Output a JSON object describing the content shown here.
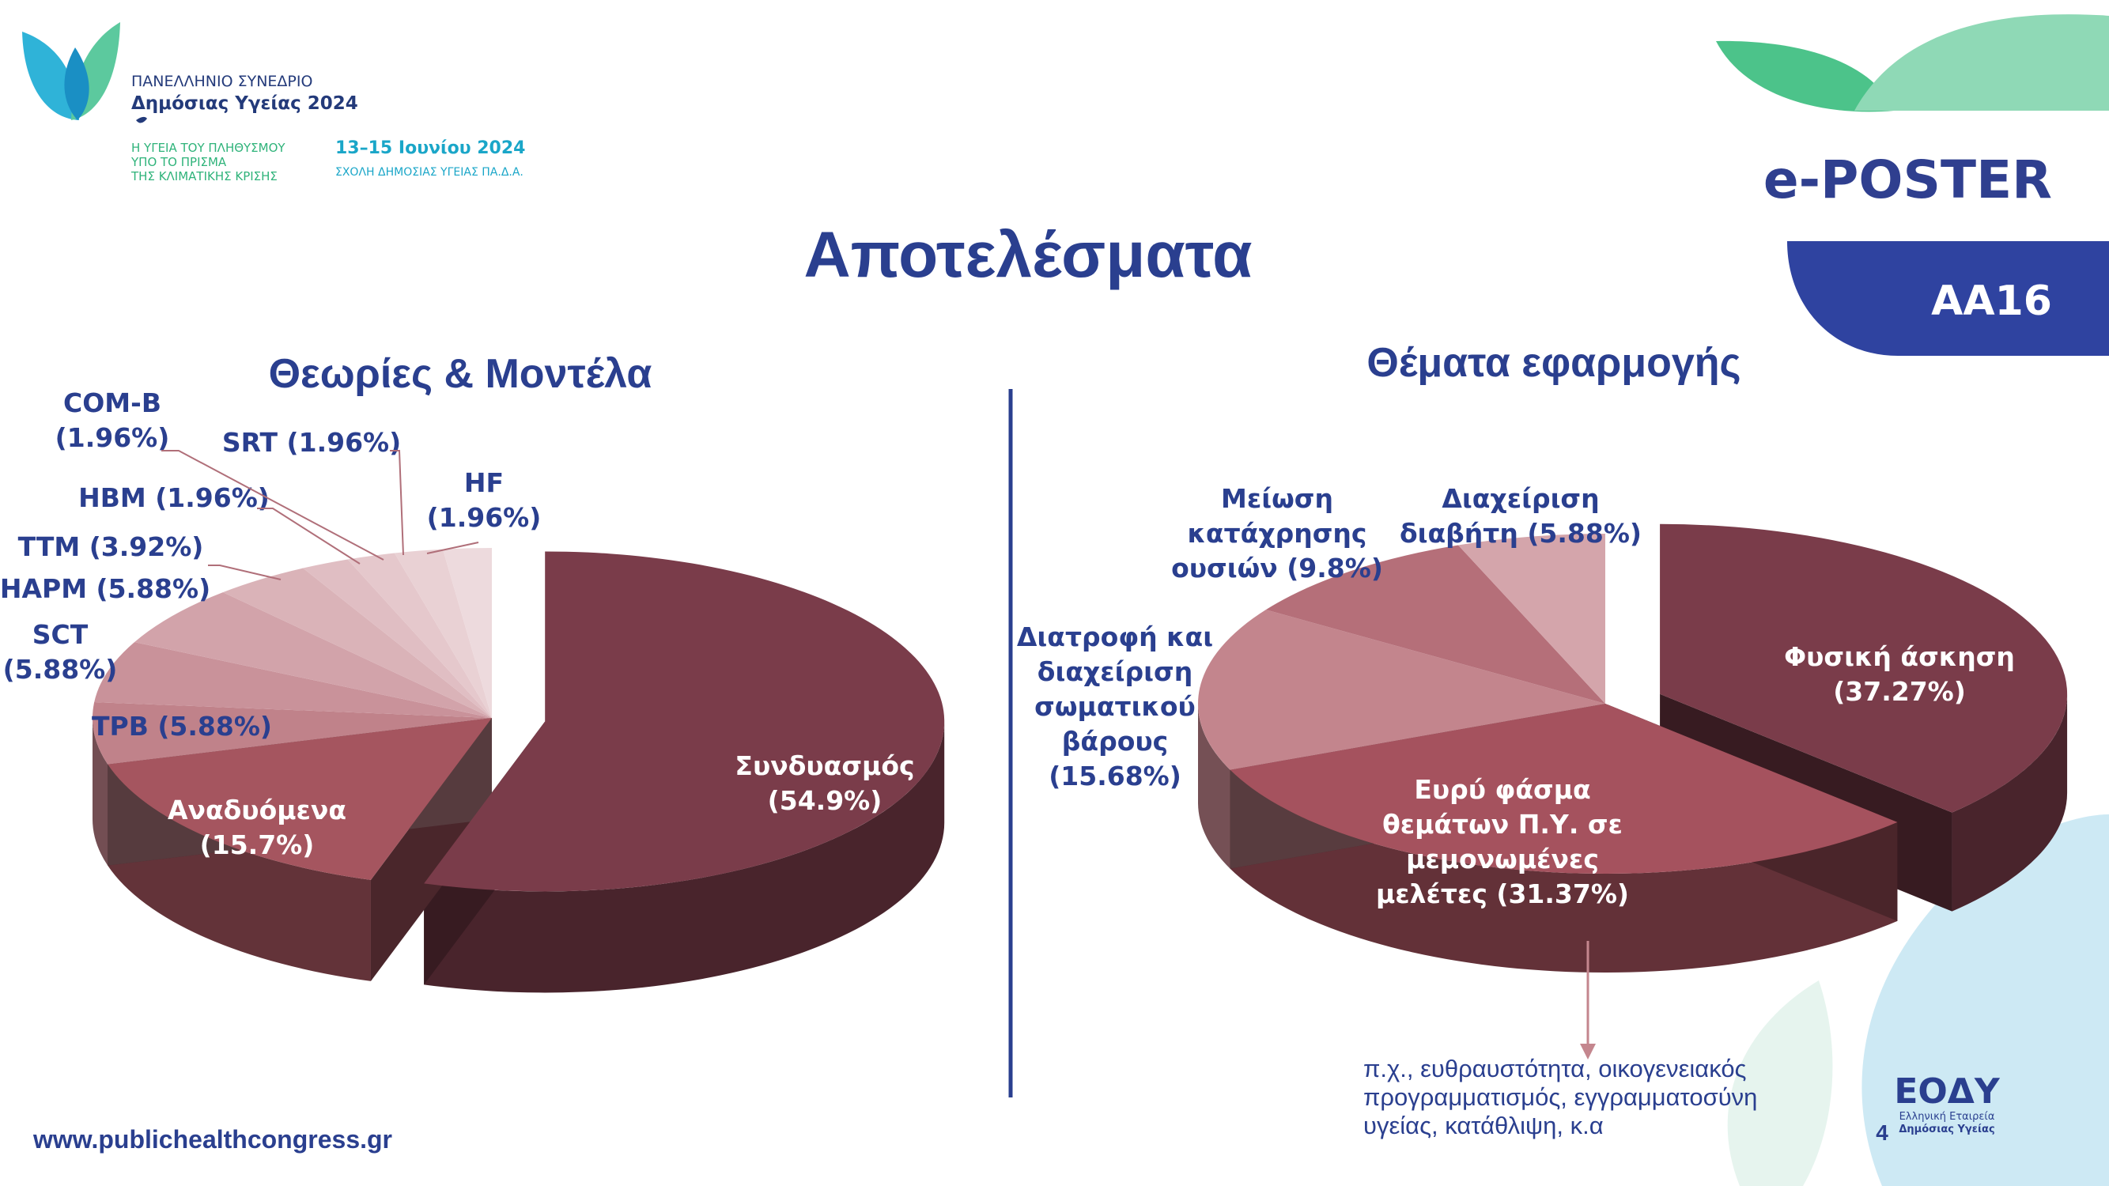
{
  "header": {
    "congress_line1": "ΠΑΝΕΛΛΗΝΙΟ ΣΥΝΕΔΡΙΟ",
    "congress_line2": "Δημόσιας Υγείας 2024",
    "theme_line1": "Η ΥΓΕΙΑ ΤΟΥ ΠΛΗΘΥΣΜΟΥ",
    "theme_line2": "ΥΠΟ ΤΟ ΠΡΙΣΜΑ",
    "theme_line3": "ΤΗΣ ΚΛΙΜΑΤΙΚΗΣ ΚΡΙΣΗΣ",
    "dates": "13–15 Ιουνίου 2024",
    "venue": "ΣΧΟΛΗ ΔΗΜΟΣΙΑΣ ΥΓΕΙΑΣ ΠΑ.Δ.Α.",
    "eposter": "e-POSTER",
    "code": "AA16"
  },
  "title": "Αποτελέσματα",
  "footer": {
    "website": "www.publichealthcongress.gr",
    "page_number": "4",
    "logo_text": "ΕΟΔΥ",
    "logo_sub1": "Ελληνική Εταιρεία",
    "logo_sub2": "Δημόσιας Υγείας"
  },
  "note": {
    "line1": "π.χ., ευθραυστότητα, οικογενειακός",
    "line2": "προγραμματισμός, εγγραμματοσύνη",
    "line3": "υγείας, κατάθλιψη, κ.α"
  },
  "colors": {
    "navy": "#2a3f8f",
    "green": "#2fb37a",
    "teal": "#1aa6c8",
    "maroon": "#7b3a49"
  },
  "chart_data": [
    {
      "type": "pie",
      "title": "Θεωρίες & Μοντέλα",
      "slices": [
        {
          "name": "Συνδυασμός",
          "value": 54.9,
          "label": [
            "Συνδυασμός",
            "(54.9%)"
          ],
          "color": "#7a3c4a"
        },
        {
          "name": "Αναδυόμενα",
          "value": 15.7,
          "label": [
            "Αναδυόμενα",
            "(15.7%)"
          ],
          "color": "#a5555f"
        },
        {
          "name": "TPB",
          "value": 5.88,
          "label": [
            "TPB (5.88%)"
          ],
          "color": "#c0828a"
        },
        {
          "name": "SCT",
          "value": 5.88,
          "label": [
            "SCT",
            "(5.88%)"
          ],
          "color": "#c9929a"
        },
        {
          "name": "HAPM",
          "value": 5.88,
          "label": [
            "HAPM (5.88%)"
          ],
          "color": "#d2a3aa"
        },
        {
          "name": "TTM",
          "value": 3.92,
          "label": [
            "TTM (3.92%)"
          ],
          "color": "#dab3b8"
        },
        {
          "name": "HBM",
          "value": 1.96,
          "label": [
            "HBM (1.96%)"
          ],
          "color": "#e0bec3"
        },
        {
          "name": "COM-B",
          "value": 1.96,
          "label": [
            "COM-B",
            "(1.96%)"
          ],
          "color": "#e5c8cc"
        },
        {
          "name": "SRT",
          "value": 1.96,
          "label": [
            "SRT (1.96%)"
          ],
          "color": "#e9d1d4"
        },
        {
          "name": "HF",
          "value": 1.96,
          "label": [
            "HF",
            "(1.96%)"
          ],
          "color": "#eddadd"
        }
      ]
    },
    {
      "type": "pie",
      "title": "Θέματα εφαρμογής",
      "slices": [
        {
          "name": "Φυσική άσκηση",
          "value": 37.27,
          "label": [
            "Φυσική άσκηση",
            "(37.27%)"
          ],
          "color": "#7a3c4a"
        },
        {
          "name": "Ευρύ φάσμα θεμάτων Π.Υ. σε μεμονωμένες μελέτες",
          "value": 31.37,
          "label": [
            "Ευρύ φάσμα",
            "θεμάτων Π.Υ. σε",
            "μεμονωμένες",
            "μελέτες (31.37%)"
          ],
          "color": "#a5525e"
        },
        {
          "name": "Διατροφή και διαχείριση σωματικού βάρους",
          "value": 15.68,
          "label": [
            "Διατροφή και",
            "διαχείριση",
            "σωματικού",
            "βάρους",
            "(15.68%)"
          ],
          "color": "#c3858d"
        },
        {
          "name": "Μείωση κατάχρησης ουσιών",
          "value": 9.8,
          "label": [
            "Μείωση",
            "κατάχρησης",
            "ουσιών (9.8%)"
          ],
          "color": "#b56f79"
        },
        {
          "name": "Διαχείριση διαβήτη",
          "value": 5.88,
          "label": [
            "Διαχείριση",
            "διαβήτη (5.88%)"
          ],
          "color": "#d4a5ab"
        }
      ]
    }
  ]
}
